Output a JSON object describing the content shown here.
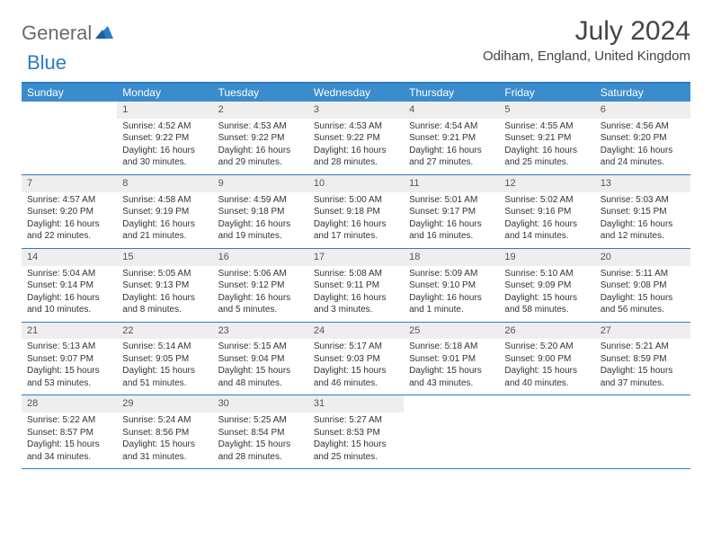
{
  "logo": {
    "text1": "General",
    "text2": "Blue",
    "color1": "#6a6a6a",
    "color2": "#2a7cc7"
  },
  "title": "July 2024",
  "location": "Odiham, England, United Kingdom",
  "colors": {
    "header_bg": "#3a8ccc",
    "border": "#2a7cc7",
    "daynum_bg": "#eeeeee",
    "text": "#333333"
  },
  "weekdays": [
    "Sunday",
    "Monday",
    "Tuesday",
    "Wednesday",
    "Thursday",
    "Friday",
    "Saturday"
  ],
  "weeks": [
    [
      null,
      {
        "n": "1",
        "sr": "Sunrise: 4:52 AM",
        "ss": "Sunset: 9:22 PM",
        "dl": "Daylight: 16 hours and 30 minutes."
      },
      {
        "n": "2",
        "sr": "Sunrise: 4:53 AM",
        "ss": "Sunset: 9:22 PM",
        "dl": "Daylight: 16 hours and 29 minutes."
      },
      {
        "n": "3",
        "sr": "Sunrise: 4:53 AM",
        "ss": "Sunset: 9:22 PM",
        "dl": "Daylight: 16 hours and 28 minutes."
      },
      {
        "n": "4",
        "sr": "Sunrise: 4:54 AM",
        "ss": "Sunset: 9:21 PM",
        "dl": "Daylight: 16 hours and 27 minutes."
      },
      {
        "n": "5",
        "sr": "Sunrise: 4:55 AM",
        "ss": "Sunset: 9:21 PM",
        "dl": "Daylight: 16 hours and 25 minutes."
      },
      {
        "n": "6",
        "sr": "Sunrise: 4:56 AM",
        "ss": "Sunset: 9:20 PM",
        "dl": "Daylight: 16 hours and 24 minutes."
      }
    ],
    [
      {
        "n": "7",
        "sr": "Sunrise: 4:57 AM",
        "ss": "Sunset: 9:20 PM",
        "dl": "Daylight: 16 hours and 22 minutes."
      },
      {
        "n": "8",
        "sr": "Sunrise: 4:58 AM",
        "ss": "Sunset: 9:19 PM",
        "dl": "Daylight: 16 hours and 21 minutes."
      },
      {
        "n": "9",
        "sr": "Sunrise: 4:59 AM",
        "ss": "Sunset: 9:18 PM",
        "dl": "Daylight: 16 hours and 19 minutes."
      },
      {
        "n": "10",
        "sr": "Sunrise: 5:00 AM",
        "ss": "Sunset: 9:18 PM",
        "dl": "Daylight: 16 hours and 17 minutes."
      },
      {
        "n": "11",
        "sr": "Sunrise: 5:01 AM",
        "ss": "Sunset: 9:17 PM",
        "dl": "Daylight: 16 hours and 16 minutes."
      },
      {
        "n": "12",
        "sr": "Sunrise: 5:02 AM",
        "ss": "Sunset: 9:16 PM",
        "dl": "Daylight: 16 hours and 14 minutes."
      },
      {
        "n": "13",
        "sr": "Sunrise: 5:03 AM",
        "ss": "Sunset: 9:15 PM",
        "dl": "Daylight: 16 hours and 12 minutes."
      }
    ],
    [
      {
        "n": "14",
        "sr": "Sunrise: 5:04 AM",
        "ss": "Sunset: 9:14 PM",
        "dl": "Daylight: 16 hours and 10 minutes."
      },
      {
        "n": "15",
        "sr": "Sunrise: 5:05 AM",
        "ss": "Sunset: 9:13 PM",
        "dl": "Daylight: 16 hours and 8 minutes."
      },
      {
        "n": "16",
        "sr": "Sunrise: 5:06 AM",
        "ss": "Sunset: 9:12 PM",
        "dl": "Daylight: 16 hours and 5 minutes."
      },
      {
        "n": "17",
        "sr": "Sunrise: 5:08 AM",
        "ss": "Sunset: 9:11 PM",
        "dl": "Daylight: 16 hours and 3 minutes."
      },
      {
        "n": "18",
        "sr": "Sunrise: 5:09 AM",
        "ss": "Sunset: 9:10 PM",
        "dl": "Daylight: 16 hours and 1 minute."
      },
      {
        "n": "19",
        "sr": "Sunrise: 5:10 AM",
        "ss": "Sunset: 9:09 PM",
        "dl": "Daylight: 15 hours and 58 minutes."
      },
      {
        "n": "20",
        "sr": "Sunrise: 5:11 AM",
        "ss": "Sunset: 9:08 PM",
        "dl": "Daylight: 15 hours and 56 minutes."
      }
    ],
    [
      {
        "n": "21",
        "sr": "Sunrise: 5:13 AM",
        "ss": "Sunset: 9:07 PM",
        "dl": "Daylight: 15 hours and 53 minutes."
      },
      {
        "n": "22",
        "sr": "Sunrise: 5:14 AM",
        "ss": "Sunset: 9:05 PM",
        "dl": "Daylight: 15 hours and 51 minutes."
      },
      {
        "n": "23",
        "sr": "Sunrise: 5:15 AM",
        "ss": "Sunset: 9:04 PM",
        "dl": "Daylight: 15 hours and 48 minutes."
      },
      {
        "n": "24",
        "sr": "Sunrise: 5:17 AM",
        "ss": "Sunset: 9:03 PM",
        "dl": "Daylight: 15 hours and 46 minutes."
      },
      {
        "n": "25",
        "sr": "Sunrise: 5:18 AM",
        "ss": "Sunset: 9:01 PM",
        "dl": "Daylight: 15 hours and 43 minutes."
      },
      {
        "n": "26",
        "sr": "Sunrise: 5:20 AM",
        "ss": "Sunset: 9:00 PM",
        "dl": "Daylight: 15 hours and 40 minutes."
      },
      {
        "n": "27",
        "sr": "Sunrise: 5:21 AM",
        "ss": "Sunset: 8:59 PM",
        "dl": "Daylight: 15 hours and 37 minutes."
      }
    ],
    [
      {
        "n": "28",
        "sr": "Sunrise: 5:22 AM",
        "ss": "Sunset: 8:57 PM",
        "dl": "Daylight: 15 hours and 34 minutes."
      },
      {
        "n": "29",
        "sr": "Sunrise: 5:24 AM",
        "ss": "Sunset: 8:56 PM",
        "dl": "Daylight: 15 hours and 31 minutes."
      },
      {
        "n": "30",
        "sr": "Sunrise: 5:25 AM",
        "ss": "Sunset: 8:54 PM",
        "dl": "Daylight: 15 hours and 28 minutes."
      },
      {
        "n": "31",
        "sr": "Sunrise: 5:27 AM",
        "ss": "Sunset: 8:53 PM",
        "dl": "Daylight: 15 hours and 25 minutes."
      },
      null,
      null,
      null
    ]
  ]
}
